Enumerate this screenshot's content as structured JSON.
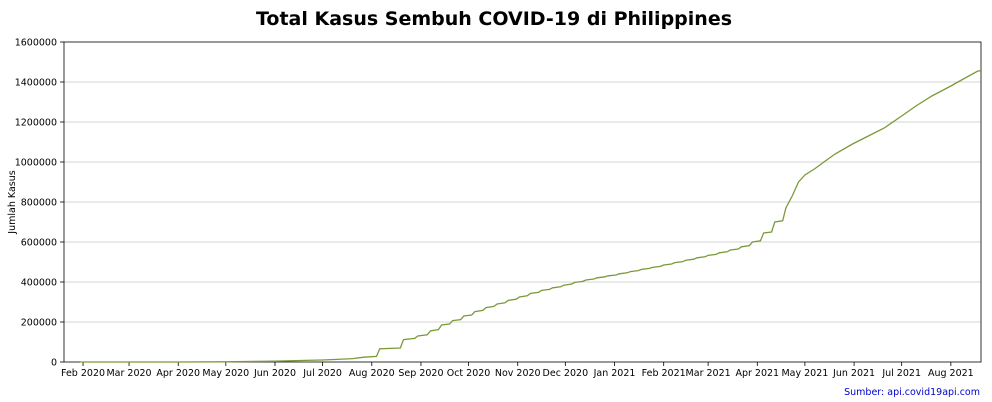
{
  "chart_data": {
    "type": "line",
    "title": "Total Kasus Sembuh COVID-19 di Philippines",
    "xlabel": "",
    "ylabel": "Jumlah Kasus",
    "source": "Sumber: api.covid19api.com",
    "ylim": [
      0,
      1600000
    ],
    "xlim": [
      "2020-01-20",
      "2021-08-20"
    ],
    "yticks": [
      0,
      200000,
      400000,
      600000,
      800000,
      1000000,
      1200000,
      1400000,
      1600000
    ],
    "yticklabels": [
      "0",
      "200000",
      "400000",
      "600000",
      "800000",
      "1000000",
      "1200000",
      "1400000",
      "1600000"
    ],
    "xticks": [
      {
        "date": "2020-02-01",
        "label": "Feb 2020"
      },
      {
        "date": "2020-03-01",
        "label": "Mar 2020"
      },
      {
        "date": "2020-04-01",
        "label": "Apr 2020"
      },
      {
        "date": "2020-05-01",
        "label": "May 2020"
      },
      {
        "date": "2020-06-01",
        "label": "Jun 2020"
      },
      {
        "date": "2020-07-01",
        "label": "Jul 2020"
      },
      {
        "date": "2020-08-01",
        "label": "Aug 2020"
      },
      {
        "date": "2020-09-01",
        "label": "Sep 2020"
      },
      {
        "date": "2020-10-01",
        "label": "Oct 2020"
      },
      {
        "date": "2020-11-01",
        "label": "Nov 2020"
      },
      {
        "date": "2020-12-01",
        "label": "Dec 2020"
      },
      {
        "date": "2021-01-01",
        "label": "Jan 2021"
      },
      {
        "date": "2021-02-01",
        "label": "Feb 2021"
      },
      {
        "date": "2021-03-01",
        "label": "Mar 2021"
      },
      {
        "date": "2021-04-01",
        "label": "Apr 2021"
      },
      {
        "date": "2021-05-01",
        "label": "May 2021"
      },
      {
        "date": "2021-06-01",
        "label": "Jun 2021"
      },
      {
        "date": "2021-07-01",
        "label": "Jul 2021"
      },
      {
        "date": "2021-08-01",
        "label": "Aug 2021"
      }
    ],
    "grid": "horizontal",
    "line_color": "#7a9a3a",
    "source_color": "#0000cc",
    "series": [
      {
        "name": "",
        "points": [
          [
            "2020-01-30",
            0
          ],
          [
            "2020-03-01",
            0
          ],
          [
            "2020-04-01",
            50
          ],
          [
            "2020-05-01",
            1000
          ],
          [
            "2020-06-01",
            4000
          ],
          [
            "2020-06-20",
            8000
          ],
          [
            "2020-07-01",
            10000
          ],
          [
            "2020-07-10",
            13000
          ],
          [
            "2020-07-20",
            17000
          ],
          [
            "2020-07-27",
            24000
          ],
          [
            "2020-08-04",
            28000
          ],
          [
            "2020-08-06",
            66000
          ],
          [
            "2020-08-19",
            70000
          ],
          [
            "2020-08-21",
            112000
          ],
          [
            "2020-08-28",
            118000
          ],
          [
            "2020-08-30",
            130000
          ],
          [
            "2020-09-05",
            136000
          ],
          [
            "2020-09-07",
            156000
          ],
          [
            "2020-09-12",
            162000
          ],
          [
            "2020-09-14",
            185000
          ],
          [
            "2020-09-19",
            190000
          ],
          [
            "2020-09-21",
            207000
          ],
          [
            "2020-09-26",
            212000
          ],
          [
            "2020-09-28",
            230000
          ],
          [
            "2020-10-03",
            235000
          ],
          [
            "2020-10-05",
            252000
          ],
          [
            "2020-10-10",
            258000
          ],
          [
            "2020-10-12",
            272000
          ],
          [
            "2020-10-17",
            278000
          ],
          [
            "2020-10-19",
            290000
          ],
          [
            "2020-10-24",
            296000
          ],
          [
            "2020-10-26",
            308000
          ],
          [
            "2020-10-31",
            314000
          ],
          [
            "2020-11-02",
            325000
          ],
          [
            "2020-11-07",
            331000
          ],
          [
            "2020-11-09",
            343000
          ],
          [
            "2020-11-14",
            348000
          ],
          [
            "2020-11-16",
            358000
          ],
          [
            "2020-11-21",
            363000
          ],
          [
            "2020-11-23",
            371000
          ],
          [
            "2020-11-28",
            376000
          ],
          [
            "2020-11-30",
            384000
          ],
          [
            "2020-12-05",
            390000
          ],
          [
            "2020-12-07",
            398000
          ],
          [
            "2020-12-12",
            403000
          ],
          [
            "2020-12-14",
            410000
          ],
          [
            "2020-12-19",
            415000
          ],
          [
            "2020-12-21",
            421000
          ],
          [
            "2020-12-26",
            426000
          ],
          [
            "2020-12-28",
            431000
          ],
          [
            "2021-01-02",
            435000
          ],
          [
            "2021-01-04",
            441000
          ],
          [
            "2021-01-09",
            446000
          ],
          [
            "2021-01-11",
            452000
          ],
          [
            "2021-01-16",
            457000
          ],
          [
            "2021-01-18",
            463000
          ],
          [
            "2021-01-23",
            468000
          ],
          [
            "2021-01-25",
            473000
          ],
          [
            "2021-01-30",
            478000
          ],
          [
            "2021-02-01",
            485000
          ],
          [
            "2021-02-06",
            490000
          ],
          [
            "2021-02-08",
            497000
          ],
          [
            "2021-02-13",
            502000
          ],
          [
            "2021-02-15",
            509000
          ],
          [
            "2021-02-20",
            514000
          ],
          [
            "2021-02-22",
            521000
          ],
          [
            "2021-02-27",
            526000
          ],
          [
            "2021-03-01",
            533000
          ],
          [
            "2021-03-06",
            538000
          ],
          [
            "2021-03-08",
            546000
          ],
          [
            "2021-03-13",
            551000
          ],
          [
            "2021-03-15",
            560000
          ],
          [
            "2021-03-20",
            565000
          ],
          [
            "2021-03-22",
            576000
          ],
          [
            "2021-03-27",
            582000
          ],
          [
            "2021-03-29",
            600000
          ],
          [
            "2021-04-03",
            606000
          ],
          [
            "2021-04-05",
            645000
          ],
          [
            "2021-04-10",
            650000
          ],
          [
            "2021-04-12",
            700000
          ],
          [
            "2021-04-17",
            706000
          ],
          [
            "2021-04-19",
            770000
          ],
          [
            "2021-04-23",
            830000
          ],
          [
            "2021-04-27",
            900000
          ],
          [
            "2021-05-01",
            935000
          ],
          [
            "2021-05-07",
            965000
          ],
          [
            "2021-05-13",
            1000000
          ],
          [
            "2021-05-20",
            1040000
          ],
          [
            "2021-05-31",
            1090000
          ],
          [
            "2021-06-10",
            1130000
          ],
          [
            "2021-06-20",
            1170000
          ],
          [
            "2021-07-01",
            1230000
          ],
          [
            "2021-07-10",
            1280000
          ],
          [
            "2021-07-20",
            1330000
          ],
          [
            "2021-08-01",
            1380000
          ],
          [
            "2021-08-10",
            1420000
          ],
          [
            "2021-08-18",
            1455000
          ],
          [
            "2021-08-20",
            1456000
          ]
        ]
      }
    ]
  }
}
